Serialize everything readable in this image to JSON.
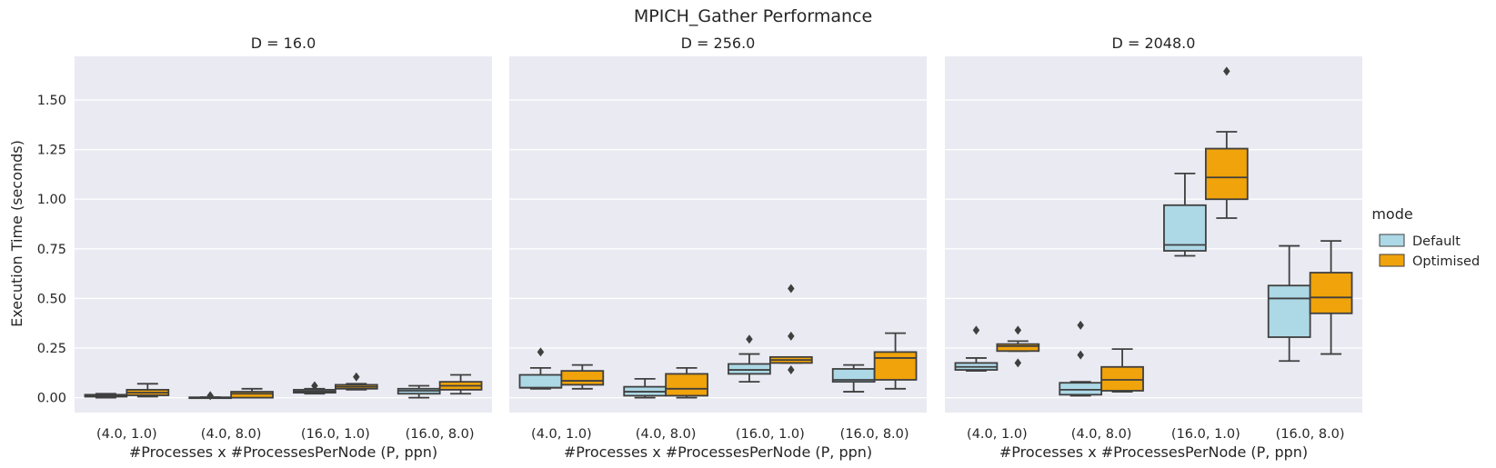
{
  "chart_data": {
    "type": "box",
    "title": "MPICH_Gather Performance",
    "xlabel": "#Processes x #ProcessesPerNode (P, ppn)",
    "ylabel": "Execution Time (seconds)",
    "ylim": [
      -0.075,
      1.72
    ],
    "yticks": [
      0.0,
      0.25,
      0.5,
      0.75,
      1.0,
      1.25,
      1.5
    ],
    "ytick_labels": [
      "0.00",
      "0.25",
      "0.50",
      "0.75",
      "1.00",
      "1.25",
      "1.50"
    ],
    "categories": [
      "(4.0, 1.0)",
      "(4.0, 8.0)",
      "(16.0, 1.0)",
      "(16.0, 8.0)"
    ],
    "grid": true,
    "legend": {
      "title": "mode",
      "position": "right",
      "entries": [
        {
          "name": "Default",
          "color": "#add8e6"
        },
        {
          "name": "Optimised",
          "color": "#f0a30a"
        }
      ]
    },
    "panels": [
      {
        "title": "D = 16.0",
        "series": [
          {
            "name": "Default",
            "boxes": [
              {
                "whislo": 0.0,
                "q1": 0.005,
                "med": 0.01,
                "q3": 0.015,
                "whishi": 0.02,
                "fliers": []
              },
              {
                "whislo": 0.0,
                "q1": 0.0,
                "med": 0.001,
                "q3": 0.002,
                "whishi": 0.003,
                "fliers": [
                  0.01
                ]
              },
              {
                "whislo": 0.02,
                "q1": 0.025,
                "med": 0.032,
                "q3": 0.04,
                "whishi": 0.045,
                "fliers": [
                  0.06
                ]
              },
              {
                "whislo": 0.0,
                "q1": 0.02,
                "med": 0.035,
                "q3": 0.045,
                "whishi": 0.06,
                "fliers": []
              }
            ]
          },
          {
            "name": "Optimised",
            "boxes": [
              {
                "whislo": 0.005,
                "q1": 0.012,
                "med": 0.025,
                "q3": 0.04,
                "whishi": 0.07,
                "fliers": []
              },
              {
                "whislo": 0.0,
                "q1": 0.0,
                "med": 0.02,
                "q3": 0.03,
                "whishi": 0.045,
                "fliers": []
              },
              {
                "whislo": 0.04,
                "q1": 0.045,
                "med": 0.055,
                "q3": 0.065,
                "whishi": 0.07,
                "fliers": [
                  0.105
                ]
              },
              {
                "whislo": 0.02,
                "q1": 0.04,
                "med": 0.06,
                "q3": 0.08,
                "whishi": 0.115,
                "fliers": []
              }
            ]
          }
        ]
      },
      {
        "title": "D = 256.0",
        "series": [
          {
            "name": "Default",
            "boxes": [
              {
                "whislo": 0.045,
                "q1": 0.05,
                "med": 0.05,
                "q3": 0.115,
                "whishi": 0.15,
                "fliers": [
                  0.23
                ]
              },
              {
                "whislo": 0.0,
                "q1": 0.01,
                "med": 0.03,
                "q3": 0.055,
                "whishi": 0.095,
                "fliers": []
              },
              {
                "whislo": 0.08,
                "q1": 0.12,
                "med": 0.14,
                "q3": 0.17,
                "whishi": 0.22,
                "fliers": [
                  0.295
                ]
              },
              {
                "whislo": 0.03,
                "q1": 0.08,
                "med": 0.09,
                "q3": 0.145,
                "whishi": 0.165,
                "fliers": []
              }
            ]
          },
          {
            "name": "Optimised",
            "boxes": [
              {
                "whislo": 0.045,
                "q1": 0.065,
                "med": 0.085,
                "q3": 0.135,
                "whishi": 0.165,
                "fliers": []
              },
              {
                "whislo": 0.0,
                "q1": 0.01,
                "med": 0.045,
                "q3": 0.12,
                "whishi": 0.15,
                "fliers": []
              },
              {
                "whislo": 0.175,
                "q1": 0.175,
                "med": 0.19,
                "q3": 0.205,
                "whishi": 0.205,
                "fliers": [
                  0.14,
                  0.31,
                  0.55
                ]
              },
              {
                "whislo": 0.045,
                "q1": 0.09,
                "med": 0.2,
                "q3": 0.23,
                "whishi": 0.325,
                "fliers": []
              }
            ]
          }
        ]
      },
      {
        "title": "D = 2048.0",
        "series": [
          {
            "name": "Default",
            "boxes": [
              {
                "whislo": 0.135,
                "q1": 0.14,
                "med": 0.155,
                "q3": 0.175,
                "whishi": 0.2,
                "fliers": [
                  0.34
                ]
              },
              {
                "whislo": 0.01,
                "q1": 0.015,
                "med": 0.04,
                "q3": 0.075,
                "whishi": 0.08,
                "fliers": [
                  0.215,
                  0.365
                ]
              },
              {
                "whislo": 0.715,
                "q1": 0.74,
                "med": 0.77,
                "q3": 0.97,
                "whishi": 1.13,
                "fliers": []
              },
              {
                "whislo": 0.185,
                "q1": 0.305,
                "med": 0.5,
                "q3": 0.565,
                "whishi": 0.765,
                "fliers": []
              }
            ]
          },
          {
            "name": "Optimised",
            "boxes": [
              {
                "whislo": 0.235,
                "q1": 0.235,
                "med": 0.26,
                "q3": 0.27,
                "whishi": 0.285,
                "fliers": [
                  0.175,
                  0.34
                ]
              },
              {
                "whislo": 0.03,
                "q1": 0.035,
                "med": 0.09,
                "q3": 0.155,
                "whishi": 0.245,
                "fliers": []
              },
              {
                "whislo": 0.905,
                "q1": 1.0,
                "med": 1.11,
                "q3": 1.255,
                "whishi": 1.34,
                "fliers": [
                  1.645
                ]
              },
              {
                "whislo": 0.22,
                "q1": 0.425,
                "med": 0.505,
                "q3": 0.63,
                "whishi": 0.79,
                "fliers": []
              }
            ]
          }
        ]
      }
    ]
  }
}
